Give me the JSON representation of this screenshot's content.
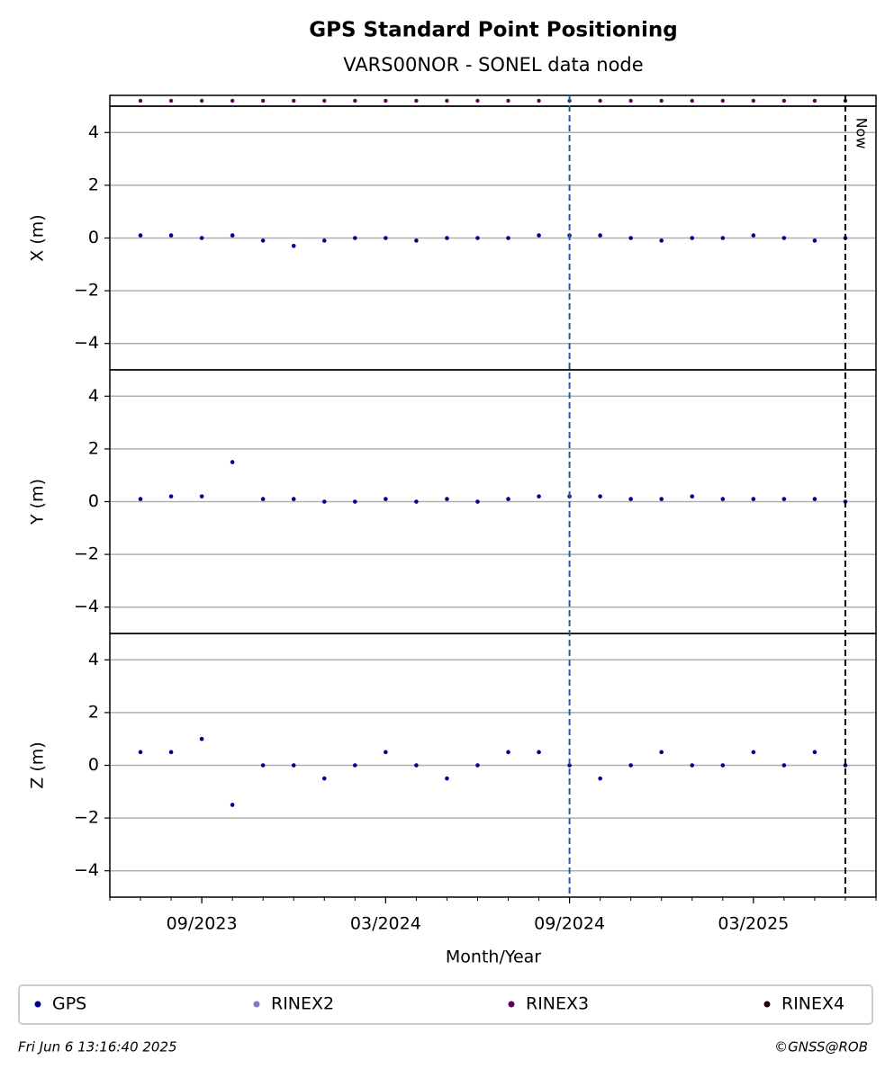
{
  "figure": {
    "title": "GPS Standard Point Positioning",
    "subtitle": "VARS00NOR - SONEL data node",
    "xlabel": "Month/Year",
    "xlim": [
      "06/2023",
      "07/2025"
    ],
    "xticks": [
      "09/2023",
      "03/2024",
      "09/2024",
      "03/2025"
    ],
    "markers": [
      {
        "x": "09/2024",
        "color": "#1f5fa8"
      },
      {
        "x": "06/2025",
        "color": "#000000",
        "label": "Now"
      }
    ],
    "legend": [
      {
        "name": "GPS",
        "color": "#00008b"
      },
      {
        "name": "RINEX2",
        "color": "#7b7bc0"
      },
      {
        "name": "RINEX3",
        "color": "#5c005c"
      },
      {
        "name": "RINEX4",
        "color": "#200010"
      }
    ],
    "availability_series": 2,
    "timestamp": "Fri Jun  6 13:16:40 2025",
    "credit": "©GNSS@ROB"
  },
  "chart_data": [
    {
      "type": "scatter",
      "ylabel": "X (m)",
      "x": [
        "07/2023",
        "08/2023",
        "09/2023",
        "10/2023",
        "11/2023",
        "12/2023",
        "01/2024",
        "02/2024",
        "03/2024",
        "04/2024",
        "05/2024",
        "06/2024",
        "07/2024",
        "08/2024",
        "09/2024",
        "10/2024",
        "11/2024",
        "12/2024",
        "01/2025",
        "02/2025",
        "03/2025",
        "04/2025",
        "05/2025",
        "06/2025"
      ],
      "series": [
        {
          "name": "GPS",
          "color": "#00008b",
          "values": [
            0.1,
            0.1,
            0.0,
            0.1,
            -0.1,
            -0.3,
            -0.1,
            0.0,
            0.0,
            -0.1,
            0.0,
            0.0,
            0.0,
            0.1,
            0.1,
            0.1,
            0.0,
            -0.1,
            0.0,
            0.0,
            0.1,
            0.0,
            -0.1,
            0.0
          ]
        }
      ],
      "ylim": [
        -5,
        5
      ],
      "yticks": [
        {
          "value": -4,
          "label": "−4"
        },
        {
          "value": -2,
          "label": "−2"
        },
        0,
        2,
        4
      ],
      "grid": true
    },
    {
      "type": "scatter",
      "ylabel": "Y (m)",
      "x": [
        "07/2023",
        "08/2023",
        "09/2023",
        "10/2023",
        "11/2023",
        "12/2023",
        "01/2024",
        "02/2024",
        "03/2024",
        "04/2024",
        "05/2024",
        "06/2024",
        "07/2024",
        "08/2024",
        "09/2024",
        "10/2024",
        "11/2024",
        "12/2024",
        "01/2025",
        "02/2025",
        "03/2025",
        "04/2025",
        "05/2025",
        "06/2025"
      ],
      "series": [
        {
          "name": "GPS",
          "color": "#00008b",
          "values": [
            0.1,
            0.2,
            0.2,
            1.5,
            0.1,
            0.1,
            0.0,
            0.0,
            0.1,
            0.0,
            0.1,
            0.0,
            0.1,
            0.2,
            0.2,
            0.2,
            0.1,
            0.1,
            0.2,
            0.1,
            0.1,
            0.1,
            0.1,
            0.0
          ]
        }
      ],
      "ylim": [
        -5,
        5
      ],
      "yticks": [
        {
          "value": -4,
          "label": "−4"
        },
        {
          "value": -2,
          "label": "−2"
        },
        0,
        2,
        4
      ],
      "grid": true
    },
    {
      "type": "scatter",
      "ylabel": "Z (m)",
      "x": [
        "07/2023",
        "08/2023",
        "09/2023",
        "10/2023",
        "11/2023",
        "12/2023",
        "01/2024",
        "02/2024",
        "03/2024",
        "04/2024",
        "05/2024",
        "06/2024",
        "07/2024",
        "08/2024",
        "09/2024",
        "10/2024",
        "11/2024",
        "12/2024",
        "01/2025",
        "02/2025",
        "03/2025",
        "04/2025",
        "05/2025",
        "06/2025"
      ],
      "series": [
        {
          "name": "GPS",
          "color": "#00008b",
          "values": [
            0.5,
            0.5,
            1.0,
            -1.5,
            0.0,
            0.0,
            -0.5,
            0.0,
            0.5,
            0.0,
            -0.5,
            0.0,
            0.5,
            0.5,
            0.0,
            -0.5,
            0.0,
            0.5,
            0.0,
            0.0,
            0.5,
            0.0,
            0.5,
            0.0
          ]
        }
      ],
      "ylim": [
        -5,
        5
      ],
      "yticks": [
        {
          "value": -4,
          "label": "−4"
        },
        {
          "value": -2,
          "label": "−2"
        },
        0,
        2,
        4
      ],
      "grid": true
    }
  ]
}
